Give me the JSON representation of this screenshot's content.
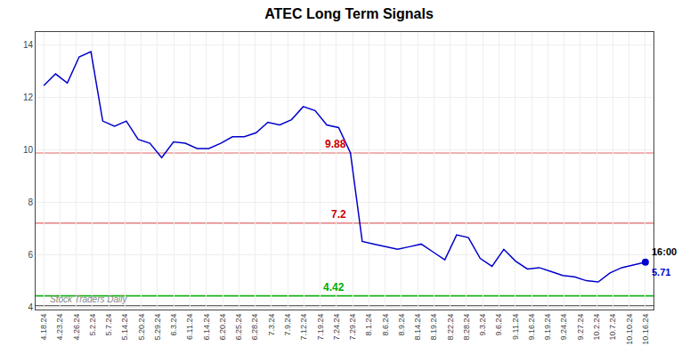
{
  "chart_data": {
    "type": "line",
    "title": "ATEC Long Term Signals",
    "color": "#0000cc",
    "values": [
      12.45,
      12.9,
      12.55,
      13.55,
      13.75,
      11.1,
      10.9,
      11.1,
      10.4,
      10.25,
      9.7,
      10.3,
      10.25,
      10.05,
      10.05,
      10.25,
      10.5,
      10.5,
      10.65,
      11.05,
      10.95,
      11.15,
      11.65,
      11.5,
      10.95,
      10.85,
      9.88,
      6.5,
      6.4,
      6.3,
      6.2,
      6.3,
      6.4,
      6.1,
      5.8,
      6.75,
      6.65,
      5.85,
      5.55,
      6.2,
      5.75,
      5.45,
      5.5,
      5.35,
      5.2,
      5.15,
      5.0,
      4.95,
      5.3,
      5.5,
      5.6,
      5.71
    ],
    "xlim": [
      -0.5,
      37.5
    ],
    "xticks": [
      {
        "value": 0,
        "label": "4.18.24"
      },
      {
        "value": 1,
        "label": "4.23.24"
      },
      {
        "value": 2,
        "label": "4.26.24"
      },
      {
        "value": 3,
        "label": "5.2.24"
      },
      {
        "value": 4,
        "label": "5.7.24"
      },
      {
        "value": 5,
        "label": "5.14.24"
      },
      {
        "value": 6,
        "label": "5.20.24"
      },
      {
        "value": 7,
        "label": "5.29.24"
      },
      {
        "value": 8,
        "label": "6.3.24"
      },
      {
        "value": 9,
        "label": "6.11.24"
      },
      {
        "value": 10,
        "label": "6.14.24"
      },
      {
        "value": 11,
        "label": "6.20.24"
      },
      {
        "value": 12,
        "label": "6.25.24"
      },
      {
        "value": 13,
        "label": "6.28.24"
      },
      {
        "value": 14,
        "label": "7.3.24"
      },
      {
        "value": 15,
        "label": "7.9.24"
      },
      {
        "value": 16,
        "label": "7.12.24"
      },
      {
        "value": 17,
        "label": "7.19.24"
      },
      {
        "value": 18,
        "label": "7.24.24"
      },
      {
        "value": 19,
        "label": "7.29.24"
      },
      {
        "value": 20,
        "label": "8.1.24"
      },
      {
        "value": 21,
        "label": "8.6.24"
      },
      {
        "value": 22,
        "label": "8.9.24"
      },
      {
        "value": 23,
        "label": "8.14.24"
      },
      {
        "value": 24,
        "label": "8.19.24"
      },
      {
        "value": 25,
        "label": "8.22.24"
      },
      {
        "value": 26,
        "label": "8.28.24"
      },
      {
        "value": 27,
        "label": "9.3.24"
      },
      {
        "value": 28,
        "label": "9.6.24"
      },
      {
        "value": 29,
        "label": "9.11.24"
      },
      {
        "value": 30,
        "label": "9.16.24"
      },
      {
        "value": 31,
        "label": "9.19.24"
      },
      {
        "value": 32,
        "label": "9.24.24"
      },
      {
        "value": 33,
        "label": "9.27.24"
      },
      {
        "value": 34,
        "label": "10.2.24"
      },
      {
        "value": 35,
        "label": "10.7.24"
      },
      {
        "value": 36,
        "label": "10.10.24"
      },
      {
        "value": 37,
        "label": "10.16.24"
      }
    ],
    "ylim": [
      3.9,
      14.5
    ],
    "yticks": [
      4,
      6,
      8,
      10,
      12,
      14
    ],
    "grid": true,
    "lines": [
      {
        "value": 9.88,
        "label": "9.88",
        "color": "#cc0000"
      },
      {
        "value": 7.2,
        "label": "7.2",
        "color": "#cc0000"
      },
      {
        "value": 4.42,
        "label": "4.42",
        "color": "#00aa00"
      },
      {
        "value": 4.05,
        "color": "#555555"
      }
    ],
    "last_point_labels": [
      "16:00",
      "5.71"
    ],
    "watermark": "Stock Traders Daily"
  }
}
